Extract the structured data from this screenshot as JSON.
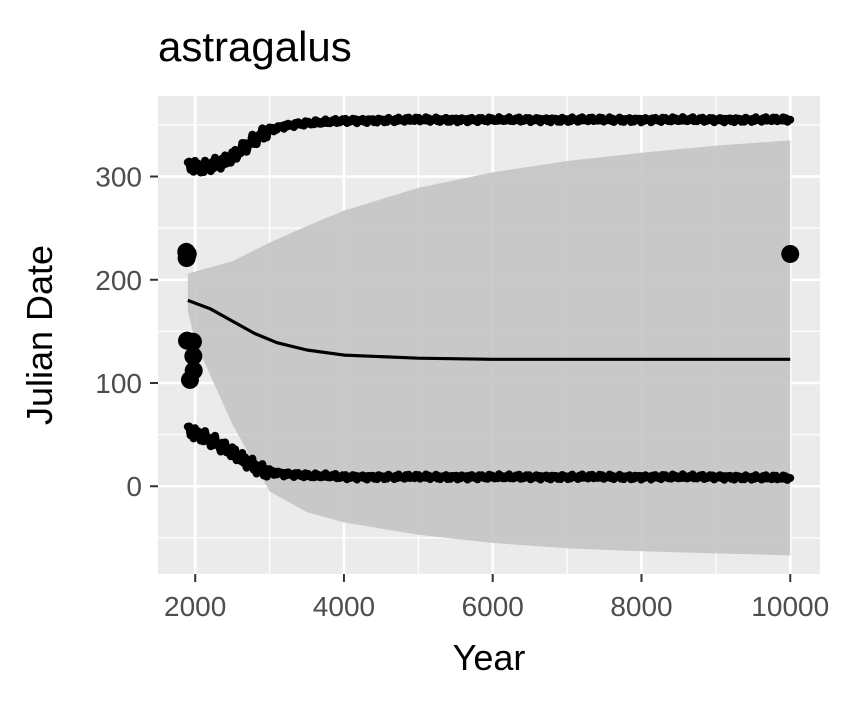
{
  "chart_data": {
    "type": "scatter",
    "title": "astragalus",
    "xlabel": "Year",
    "ylabel": "Julian Date",
    "xlim": [
      1500,
      10400
    ],
    "ylim": [
      -85,
      378
    ],
    "x_ticks": [
      2000,
      4000,
      6000,
      8000,
      10000
    ],
    "x_tick_labels": [
      "2000",
      "4000",
      "6000",
      "8000",
      "10000"
    ],
    "y_ticks": [
      0,
      100,
      200,
      300
    ],
    "y_tick_labels": [
      "0",
      "100",
      "200",
      "300"
    ],
    "grid": true,
    "legend": "none",
    "colors": {
      "panel": "#ebebeb",
      "grid": "#ffffff",
      "ribbon": "#c4c4c4",
      "points": "#000000",
      "fit_line": "#000000"
    },
    "observed_points": [
      {
        "x": 1880,
        "y": 227
      },
      {
        "x": 1885,
        "y": 221
      },
      {
        "x": 1890,
        "y": 141
      },
      {
        "x": 1900,
        "y": 225
      },
      {
        "x": 1930,
        "y": 103
      },
      {
        "x": 1970,
        "y": 140
      },
      {
        "x": 1975,
        "y": 126
      },
      {
        "x": 1980,
        "y": 112
      },
      {
        "x": 10000,
        "y": 225
      }
    ],
    "upper_band": {
      "x": [
        1900,
        2000,
        2100,
        2200,
        2300,
        2400,
        2500,
        2600,
        2700,
        2800,
        2900,
        3000,
        3200,
        3400,
        3600,
        3800,
        4000,
        5000,
        6000,
        7000,
        8000,
        9000,
        10000
      ],
      "y": [
        311,
        311,
        309,
        311,
        312,
        314,
        318,
        324,
        330,
        336,
        341,
        345,
        349,
        351,
        352,
        353,
        354,
        355,
        355,
        355,
        355,
        355,
        355
      ]
    },
    "lower_band": {
      "x": [
        1900,
        2000,
        2100,
        2200,
        2300,
        2400,
        2500,
        2600,
        2700,
        2800,
        2900,
        3000,
        3200,
        3400,
        3600,
        3800,
        4000,
        5000,
        6000,
        7000,
        8000,
        9000,
        10000
      ],
      "y": [
        55,
        52,
        49,
        45,
        41,
        36,
        32,
        27,
        23,
        19,
        16,
        14,
        12,
        11,
        10,
        10,
        9,
        9,
        9,
        9,
        9,
        9,
        8
      ]
    },
    "fit_line": {
      "x": [
        1900,
        2200,
        2500,
        2800,
        3100,
        3500,
        4000,
        5000,
        6000,
        7000,
        8000,
        9000,
        10000
      ],
      "y": [
        180,
        172,
        160,
        148,
        139,
        132,
        127,
        124,
        123,
        123,
        123,
        123,
        123
      ]
    },
    "confidence_ribbon": {
      "x": [
        1900,
        2000,
        2500,
        3000,
        3500,
        4000,
        5000,
        6000,
        7000,
        8000,
        9000,
        10000
      ],
      "upper": [
        206,
        208,
        218,
        236,
        252,
        267,
        289,
        304,
        315,
        323,
        330,
        335
      ],
      "lower": [
        170,
        140,
        60,
        -5,
        -25,
        -35,
        -47,
        -55,
        -60,
        -63,
        -65,
        -67
      ]
    }
  }
}
